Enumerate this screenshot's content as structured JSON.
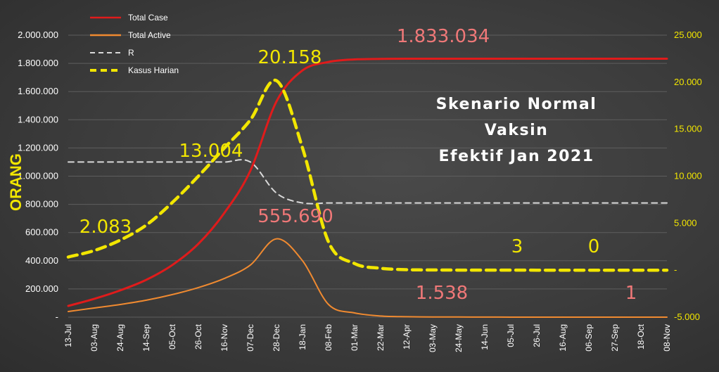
{
  "chart_data": {
    "type": "line",
    "title": [
      "Skenario Normal",
      "Vaksin",
      "Efektif Jan 2021"
    ],
    "ylabel": "ORANG",
    "categories": [
      "13-Jul",
      "03-Aug",
      "24-Aug",
      "14-Sep",
      "05-Oct",
      "26-Oct",
      "16-Nov",
      "07-Dec",
      "28-Dec",
      "18-Jan",
      "08-Feb",
      "01-Mar",
      "22-Mar",
      "12-Apr",
      "03-May",
      "24-May",
      "14-Jun",
      "05-Jul",
      "26-Jul",
      "16-Aug",
      "06-Sep",
      "27-Sep",
      "18-Oct",
      "08-Nov"
    ],
    "ylim_left": [
      0,
      2000000
    ],
    "ylim_right": [
      -5000,
      25000
    ],
    "yticks_left": [
      "-",
      "200.000",
      "400.000",
      "600.000",
      "800.000",
      "1.000.000",
      "1.200.000",
      "1.400.000",
      "1.600.000",
      "1.800.000",
      "2.000.000"
    ],
    "yticks_right": [
      "-5.000",
      "-",
      "5.000",
      "10.000",
      "15.000",
      "20.000",
      "25.000"
    ],
    "grid": true,
    "legend_position": "top-left",
    "colors": {
      "total_case": "#e01b1b",
      "total_active": "#f08a30",
      "r": "#d9d9d9",
      "kasus_harian": "#f2e600"
    },
    "series": [
      {
        "name": "Total Case",
        "axis": "left",
        "style": "solid",
        "values": [
          80000,
          130000,
          190000,
          265000,
          370000,
          520000,
          740000,
          1040000,
          1530000,
          1750000,
          1810000,
          1828000,
          1832000,
          1833000,
          1833034,
          1833034,
          1833034,
          1833034,
          1833034,
          1833034,
          1833034,
          1833034,
          1833034,
          1833034
        ]
      },
      {
        "name": "Total Active",
        "axis": "left",
        "style": "solid",
        "values": [
          40000,
          65000,
          90000,
          120000,
          160000,
          210000,
          275000,
          370000,
          555690,
          400000,
          90000,
          30000,
          8000,
          3000,
          1538,
          800,
          400,
          200,
          100,
          50,
          20,
          10,
          5,
          1
        ]
      },
      {
        "name": "R",
        "axis": "left",
        "style": "dashed",
        "values": [
          1100000,
          1100000,
          1100000,
          1100000,
          1100000,
          1100000,
          1100000,
          1100000,
          880000,
          810000,
          810000,
          810000,
          810000,
          810000,
          810000,
          810000,
          810000,
          810000,
          810000,
          810000,
          810000,
          810000,
          810000,
          810000
        ]
      },
      {
        "name": "Kasus Harian",
        "axis": "right",
        "style": "dashed",
        "values": [
          1400,
          2083,
          3200,
          4800,
          7200,
          10000,
          13004,
          16000,
          20158,
          13000,
          3000,
          700,
          200,
          50,
          20,
          8,
          5,
          3,
          1,
          0,
          0,
          0,
          0,
          0
        ]
      }
    ],
    "annotations": [
      "1.833.034",
      "20.158",
      "13.004",
      "555.690",
      "2.083",
      "3",
      "0",
      "1.538",
      "1"
    ]
  }
}
